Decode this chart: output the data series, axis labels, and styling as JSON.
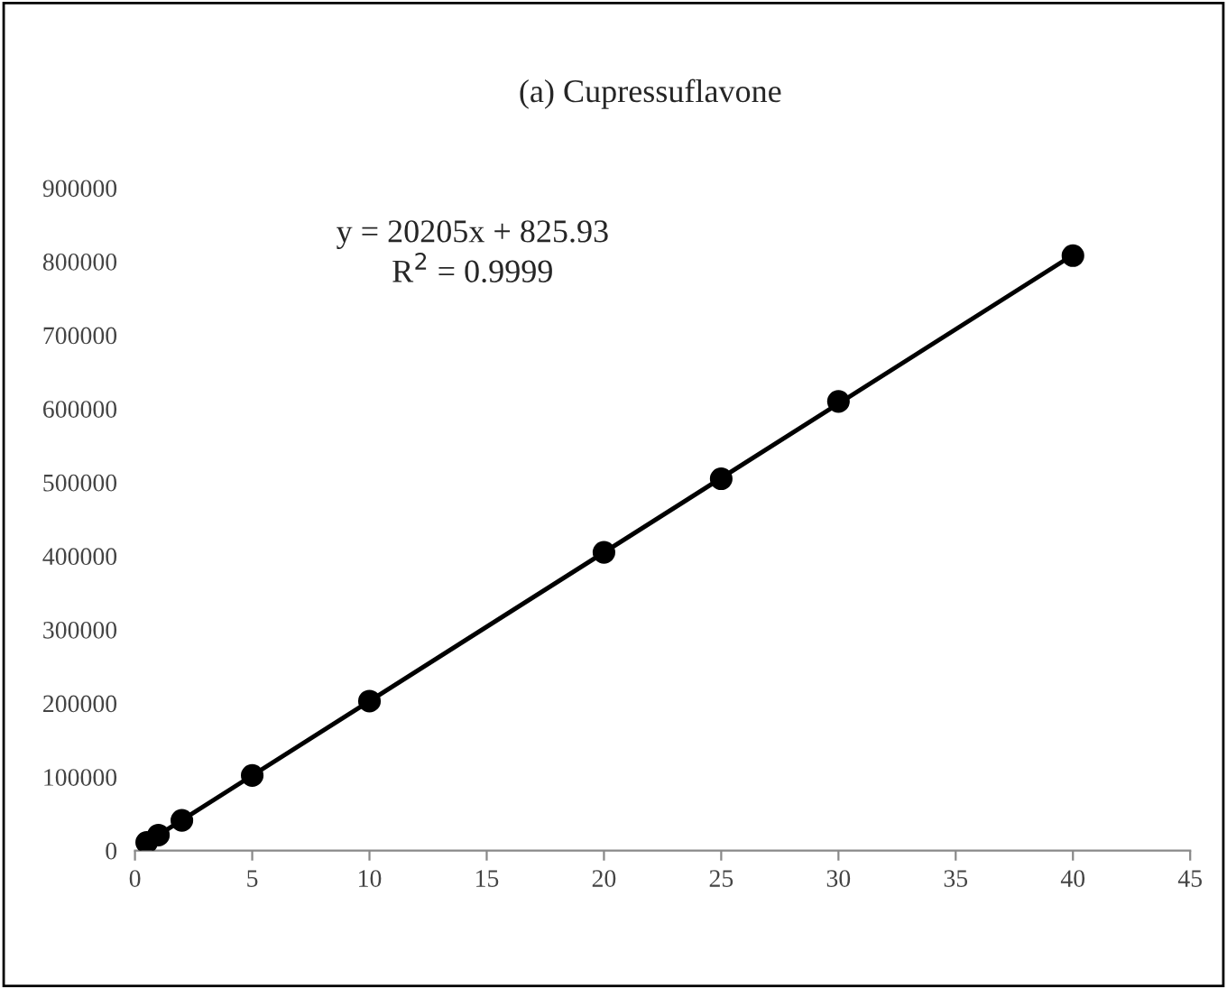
{
  "chart_data": {
    "type": "scatter",
    "title": "(a) Cupressuflavone",
    "annotations": [
      "y = 20205x + 825.93",
      "R$^{2}$ = 0.9999"
    ],
    "series": [
      {
        "type": "scatter",
        "color": "#000000",
        "marker": "circle",
        "x": [
          0.5,
          1,
          2,
          5,
          10,
          20,
          25,
          30,
          40
        ],
        "values": [
          11000,
          21000,
          41000,
          102000,
          203000,
          405000,
          505000,
          610000,
          808000
        ]
      },
      {
        "type": "line",
        "color": "#000000",
        "line_style": "solid",
        "x": [
          0.5,
          40
        ],
        "values": [
          11000,
          809000
        ]
      }
    ],
    "xlim": [
      0,
      45
    ],
    "xticks": [
      0,
      5,
      10,
      15,
      20,
      25,
      30,
      35,
      40,
      45
    ],
    "ylim": [
      0,
      900000
    ],
    "yticks": [
      0,
      100000,
      200000,
      300000,
      400000,
      500000,
      600000,
      700000,
      800000,
      900000
    ],
    "grid": false
  }
}
